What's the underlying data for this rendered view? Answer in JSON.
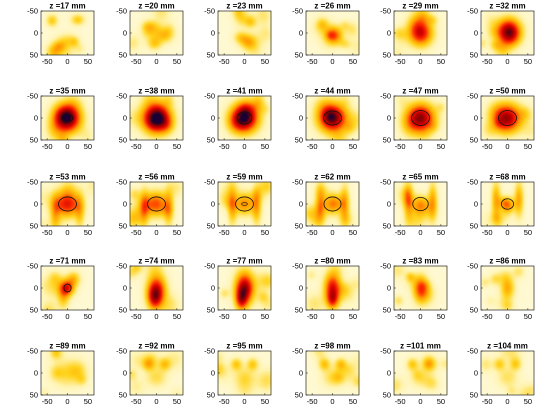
{
  "chart_data": {
    "type": "heatmap",
    "grid": {
      "rows": 5,
      "cols": 6
    },
    "x_ticks": [
      "-50",
      "0",
      "50"
    ],
    "y_ticks": [
      "-50",
      "0",
      "50"
    ],
    "x_tick_values": [
      -50,
      0,
      50
    ],
    "y_tick_values": [
      -50,
      0,
      50
    ],
    "xlim": [
      -65,
      65
    ],
    "ylim": [
      -50,
      50
    ],
    "colormap": [
      "#ffffff",
      "#fff4b0",
      "#ffd21a",
      "#ff9a00",
      "#ff3300",
      "#d60000",
      "#8a0000",
      "#1a0033"
    ],
    "outline_color": "#111111",
    "panels": [
      {
        "title": "z =17 mm",
        "blobs": [
          {
            "x": -38,
            "y": -28,
            "sx": 10,
            "sy": 10,
            "a": 0.22
          },
          {
            "x": 25,
            "y": -30,
            "sx": 12,
            "sy": 9,
            "a": 0.22
          },
          {
            "x": 0,
            "y": 18,
            "sx": 16,
            "sy": 12,
            "a": 0.16
          },
          {
            "x": -20,
            "y": 30,
            "sx": 10,
            "sy": 8,
            "a": 0.12
          }
        ]
      },
      {
        "title": "z =20 mm",
        "blobs": [
          {
            "x": -20,
            "y": -15,
            "sx": 12,
            "sy": 10,
            "a": 0.2
          },
          {
            "x": 22,
            "y": 5,
            "sx": 14,
            "sy": 12,
            "a": 0.22
          },
          {
            "x": -5,
            "y": 25,
            "sx": 12,
            "sy": 10,
            "a": 0.18
          }
        ]
      },
      {
        "title": "z =23 mm",
        "blobs": [
          {
            "x": 15,
            "y": -25,
            "sx": 10,
            "sy": 10,
            "a": 0.2
          },
          {
            "x": -10,
            "y": 10,
            "sx": 12,
            "sy": 10,
            "a": 0.18
          },
          {
            "x": 10,
            "y": 20,
            "sx": 14,
            "sy": 12,
            "a": 0.28
          }
        ]
      },
      {
        "title": "z =26 mm",
        "blobs": [
          {
            "x": 5,
            "y": 5,
            "sx": 14,
            "sy": 14,
            "a": 0.42
          },
          {
            "x": -25,
            "y": -20,
            "sx": 10,
            "sy": 10,
            "a": 0.15
          },
          {
            "x": 30,
            "y": 25,
            "sx": 10,
            "sy": 8,
            "a": 0.12
          }
        ]
      },
      {
        "title": "z =29 mm",
        "blobs": [
          {
            "x": 0,
            "y": 0,
            "sx": 20,
            "sy": 20,
            "a": 0.62
          },
          {
            "x": 30,
            "y": -30,
            "sx": 10,
            "sy": 8,
            "a": 0.12
          }
        ]
      },
      {
        "title": "z =32 mm",
        "blobs": [
          {
            "x": 3,
            "y": -3,
            "sx": 20,
            "sy": 20,
            "a": 0.78
          },
          {
            "x": -30,
            "y": 28,
            "sx": 10,
            "sy": 8,
            "a": 0.12
          }
        ]
      },
      {
        "title": "z =35 mm",
        "blobs": [
          {
            "x": 0,
            "y": 0,
            "sx": 22,
            "sy": 22,
            "a": 0.9
          }
        ],
        "outline": {
          "rx": 14,
          "ry": 8
        }
      },
      {
        "title": "z =38 mm",
        "blobs": [
          {
            "x": 0,
            "y": 0,
            "sx": 23,
            "sy": 23,
            "a": 0.95
          }
        ]
      },
      {
        "title": "z =41 mm",
        "blobs": [
          {
            "x": 0,
            "y": 0,
            "sx": 23,
            "sy": 22,
            "a": 0.88
          }
        ],
        "outline": {
          "rx": 18,
          "ry": 14
        }
      },
      {
        "title": "z =44 mm",
        "blobs": [
          {
            "x": 0,
            "y": 0,
            "sx": 24,
            "sy": 22,
            "a": 0.82
          }
        ],
        "outline": {
          "rx": 22,
          "ry": 16
        }
      },
      {
        "title": "z =47 mm",
        "blobs": [
          {
            "x": 0,
            "y": 0,
            "sx": 24,
            "sy": 22,
            "a": 0.76
          }
        ],
        "outline": {
          "rx": 22,
          "ry": 17
        }
      },
      {
        "title": "z =50 mm",
        "blobs": [
          {
            "x": 0,
            "y": 0,
            "sx": 24,
            "sy": 22,
            "a": 0.7
          }
        ],
        "outline": {
          "rx": 22,
          "ry": 17
        }
      },
      {
        "title": "z =53 mm",
        "blobs": [
          {
            "x": 0,
            "y": 0,
            "sx": 22,
            "sy": 20,
            "a": 0.56
          },
          {
            "x": -30,
            "y": 20,
            "sx": 8,
            "sy": 28,
            "a": 0.2
          },
          {
            "x": 30,
            "y": 20,
            "sx": 8,
            "sy": 28,
            "a": 0.2
          }
        ],
        "outline": {
          "rx": 22,
          "ry": 16
        }
      },
      {
        "title": "z =56 mm",
        "blobs": [
          {
            "x": 0,
            "y": 0,
            "sx": 20,
            "sy": 20,
            "a": 0.44
          },
          {
            "x": -30,
            "y": 10,
            "sx": 8,
            "sy": 30,
            "a": 0.25
          },
          {
            "x": 30,
            "y": 10,
            "sx": 8,
            "sy": 30,
            "a": 0.25
          }
        ],
        "outline": {
          "rx": 22,
          "ry": 16
        }
      },
      {
        "title": "z =59 mm",
        "blobs": [
          {
            "x": 0,
            "y": 0,
            "sx": 18,
            "sy": 18,
            "a": 0.36
          },
          {
            "x": -30,
            "y": 5,
            "sx": 8,
            "sy": 30,
            "a": 0.28
          },
          {
            "x": 30,
            "y": 5,
            "sx": 8,
            "sy": 30,
            "a": 0.28
          }
        ],
        "outline": {
          "rx": 22,
          "ry": 16
        },
        "inner": {
          "rx": 7,
          "ry": 3
        }
      },
      {
        "title": "z =62 mm",
        "blobs": [
          {
            "x": 0,
            "y": 0,
            "sx": 16,
            "sy": 16,
            "a": 0.3
          },
          {
            "x": -30,
            "y": 0,
            "sx": 8,
            "sy": 30,
            "a": 0.28
          },
          {
            "x": 30,
            "y": 0,
            "sx": 8,
            "sy": 30,
            "a": 0.28
          }
        ],
        "outline": {
          "rx": 21,
          "ry": 16
        }
      },
      {
        "title": "z =65 mm",
        "blobs": [
          {
            "x": 0,
            "y": 0,
            "sx": 14,
            "sy": 14,
            "a": 0.28
          },
          {
            "x": -30,
            "y": -5,
            "sx": 8,
            "sy": 30,
            "a": 0.3
          },
          {
            "x": 30,
            "y": -5,
            "sx": 8,
            "sy": 30,
            "a": 0.3
          }
        ],
        "outline": {
          "rx": 19,
          "ry": 15
        }
      },
      {
        "title": "z =68 mm",
        "blobs": [
          {
            "x": 0,
            "y": 0,
            "sx": 12,
            "sy": 12,
            "a": 0.3
          },
          {
            "x": -28,
            "y": -10,
            "sx": 8,
            "sy": 28,
            "a": 0.3
          },
          {
            "x": 28,
            "y": -10,
            "sx": 8,
            "sy": 28,
            "a": 0.3
          }
        ],
        "outline": {
          "rx": 15,
          "ry": 12
        }
      },
      {
        "title": "z =71 mm",
        "blobs": [
          {
            "x": 0,
            "y": 0,
            "sx": 12,
            "sy": 12,
            "a": 0.42
          },
          {
            "x": -10,
            "y": 20,
            "sx": 10,
            "sy": 20,
            "a": 0.22
          }
        ],
        "outline": {
          "rx": 9,
          "ry": 9
        }
      },
      {
        "title": "z =74 mm",
        "blobs": [
          {
            "x": 0,
            "y": 5,
            "sx": 16,
            "sy": 24,
            "a": 0.6
          },
          {
            "x": -5,
            "y": 25,
            "sx": 12,
            "sy": 18,
            "a": 0.35
          }
        ]
      },
      {
        "title": "z =77 mm",
        "blobs": [
          {
            "x": 0,
            "y": 0,
            "sx": 16,
            "sy": 26,
            "a": 0.66
          },
          {
            "x": -8,
            "y": 28,
            "sx": 10,
            "sy": 16,
            "a": 0.4
          }
        ]
      },
      {
        "title": "z =80 mm",
        "blobs": [
          {
            "x": 0,
            "y": 0,
            "sx": 14,
            "sy": 24,
            "a": 0.58
          },
          {
            "x": 0,
            "y": 28,
            "sx": 10,
            "sy": 14,
            "a": 0.35
          }
        ]
      },
      {
        "title": "z =83 mm",
        "blobs": [
          {
            "x": 0,
            "y": 0,
            "sx": 12,
            "sy": 20,
            "a": 0.42
          },
          {
            "x": -25,
            "y": -25,
            "sx": 8,
            "sy": 8,
            "a": 0.18
          }
        ]
      },
      {
        "title": "z =86 mm",
        "blobs": [
          {
            "x": 0,
            "y": 0,
            "sx": 12,
            "sy": 18,
            "a": 0.3
          },
          {
            "x": -30,
            "y": -20,
            "sx": 10,
            "sy": 10,
            "a": 0.15
          }
        ]
      },
      {
        "title": "z =89 mm",
        "blobs": [
          {
            "x": 0,
            "y": 0,
            "sx": 26,
            "sy": 22,
            "a": 0.18
          }
        ]
      },
      {
        "title": "z =92 mm",
        "blobs": [
          {
            "x": -20,
            "y": -20,
            "sx": 10,
            "sy": 10,
            "a": 0.22
          },
          {
            "x": 20,
            "y": -20,
            "sx": 10,
            "sy": 10,
            "a": 0.22
          },
          {
            "x": 0,
            "y": 10,
            "sx": 18,
            "sy": 16,
            "a": 0.16
          }
        ]
      },
      {
        "title": "z =95 mm",
        "blobs": [
          {
            "x": -20,
            "y": -20,
            "sx": 10,
            "sy": 10,
            "a": 0.22
          },
          {
            "x": 20,
            "y": -20,
            "sx": 10,
            "sy": 10,
            "a": 0.22
          },
          {
            "x": 0,
            "y": 10,
            "sx": 18,
            "sy": 16,
            "a": 0.16
          }
        ]
      },
      {
        "title": "z =98 mm",
        "blobs": [
          {
            "x": -20,
            "y": -20,
            "sx": 10,
            "sy": 10,
            "a": 0.24
          },
          {
            "x": 20,
            "y": -20,
            "sx": 10,
            "sy": 10,
            "a": 0.24
          },
          {
            "x": 0,
            "y": 10,
            "sx": 18,
            "sy": 16,
            "a": 0.16
          }
        ]
      },
      {
        "title": "z =101 mm",
        "blobs": [
          {
            "x": -20,
            "y": -20,
            "sx": 10,
            "sy": 10,
            "a": 0.22
          },
          {
            "x": 20,
            "y": -20,
            "sx": 10,
            "sy": 10,
            "a": 0.22
          },
          {
            "x": 0,
            "y": 10,
            "sx": 18,
            "sy": 16,
            "a": 0.15
          }
        ]
      },
      {
        "title": "z =104 mm",
        "blobs": [
          {
            "x": -20,
            "y": -20,
            "sx": 10,
            "sy": 10,
            "a": 0.2
          },
          {
            "x": 20,
            "y": -20,
            "sx": 10,
            "sy": 10,
            "a": 0.2
          },
          {
            "x": 0,
            "y": 10,
            "sx": 18,
            "sy": 16,
            "a": 0.14
          }
        ]
      }
    ]
  }
}
